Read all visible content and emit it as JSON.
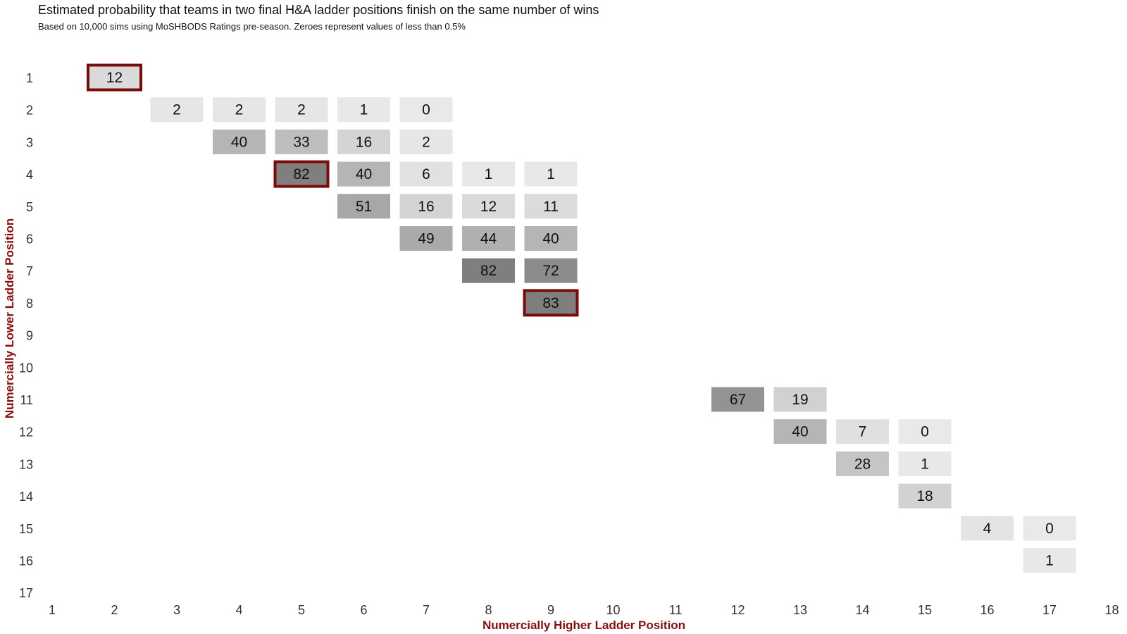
{
  "chart_data": {
    "type": "heatmap",
    "title": "Estimated probability that teams in two final H&A ladder positions finish on the same number of wins",
    "subtitle": "Based on 10,000 sims using MoSHBODS Ratings pre-season. Zeroes represent values of less than 0.5%",
    "xlabel": "Numercially Higher Ladder Position",
    "ylabel": "Numercially Lower Ladder Position",
    "x_ticks": [
      1,
      2,
      3,
      4,
      5,
      6,
      7,
      8,
      9,
      10,
      11,
      12,
      13,
      14,
      15,
      16,
      17,
      18
    ],
    "y_ticks": [
      1,
      2,
      3,
      4,
      5,
      6,
      7,
      8,
      9,
      10,
      11,
      12,
      13,
      14,
      15,
      16,
      17
    ],
    "xlim": [
      1,
      18
    ],
    "ylim": [
      1,
      17
    ],
    "grid": false,
    "legend": "none",
    "cells": [
      {
        "x": 2,
        "y": 1,
        "value": 12,
        "highlight": true
      },
      {
        "x": 3,
        "y": 2,
        "value": 2
      },
      {
        "x": 4,
        "y": 2,
        "value": 2
      },
      {
        "x": 5,
        "y": 2,
        "value": 2
      },
      {
        "x": 6,
        "y": 2,
        "value": 1
      },
      {
        "x": 7,
        "y": 2,
        "value": 0
      },
      {
        "x": 4,
        "y": 3,
        "value": 40
      },
      {
        "x": 5,
        "y": 3,
        "value": 33
      },
      {
        "x": 6,
        "y": 3,
        "value": 16
      },
      {
        "x": 7,
        "y": 3,
        "value": 2
      },
      {
        "x": 5,
        "y": 4,
        "value": 82,
        "highlight": true
      },
      {
        "x": 6,
        "y": 4,
        "value": 40
      },
      {
        "x": 7,
        "y": 4,
        "value": 6
      },
      {
        "x": 8,
        "y": 4,
        "value": 1
      },
      {
        "x": 9,
        "y": 4,
        "value": 1
      },
      {
        "x": 6,
        "y": 5,
        "value": 51
      },
      {
        "x": 7,
        "y": 5,
        "value": 16
      },
      {
        "x": 8,
        "y": 5,
        "value": 12
      },
      {
        "x": 9,
        "y": 5,
        "value": 11
      },
      {
        "x": 7,
        "y": 6,
        "value": 49
      },
      {
        "x": 8,
        "y": 6,
        "value": 44
      },
      {
        "x": 9,
        "y": 6,
        "value": 40
      },
      {
        "x": 8,
        "y": 7,
        "value": 82
      },
      {
        "x": 9,
        "y": 7,
        "value": 72
      },
      {
        "x": 9,
        "y": 8,
        "value": 83,
        "highlight": true
      },
      {
        "x": 12,
        "y": 11,
        "value": 67
      },
      {
        "x": 13,
        "y": 11,
        "value": 19
      },
      {
        "x": 13,
        "y": 12,
        "value": 40
      },
      {
        "x": 14,
        "y": 12,
        "value": 7
      },
      {
        "x": 15,
        "y": 12,
        "value": 0
      },
      {
        "x": 14,
        "y": 13,
        "value": 28
      },
      {
        "x": 15,
        "y": 13,
        "value": 1
      },
      {
        "x": 15,
        "y": 14,
        "value": 18
      },
      {
        "x": 16,
        "y": 15,
        "value": 4
      },
      {
        "x": 17,
        "y": 15,
        "value": 0
      },
      {
        "x": 17,
        "y": 16,
        "value": 1
      }
    ],
    "colors": {
      "highlight_border": "#7b0b0b",
      "axis_title": "#8b0d0d",
      "text": "#111111",
      "tick_text": "#333333",
      "low": "#e9e9e9",
      "high": "#7e7e7e"
    }
  }
}
